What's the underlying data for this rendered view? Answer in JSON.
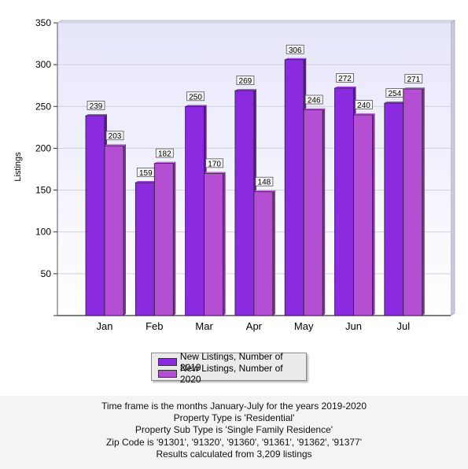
{
  "chart_data": {
    "type": "bar",
    "categories": [
      "Jan",
      "Feb",
      "Mar",
      "Apr",
      "May",
      "Jun",
      "Jul"
    ],
    "series": [
      {
        "name": "New Listings, Number of 2019",
        "values": [
          239,
          159,
          250,
          269,
          306,
          272,
          254
        ],
        "color": "#8a2be2"
      },
      {
        "name": "New Listings, Number of 2020",
        "values": [
          203,
          182,
          170,
          148,
          246,
          240,
          271
        ],
        "color": "#b44fd4"
      }
    ],
    "title": "",
    "xlabel": "",
    "ylabel": "Listings",
    "ylim": [
      0,
      350
    ],
    "yticks": [
      50,
      100,
      150,
      200,
      250,
      300,
      350
    ],
    "grid": true,
    "legend_position": "bottom-center",
    "data_labels": true
  },
  "footer": {
    "line1": "Time frame is the months January-July for the years 2019-2020",
    "line2": "Property Type is 'Residential'",
    "line3": "Property Sub Type is 'Single Family Residence'",
    "line4": "Zip Code is '91301', '91320', '91360', '91361', '91362', '91377'",
    "line5": "Results calculated from 3,209 listings"
  }
}
